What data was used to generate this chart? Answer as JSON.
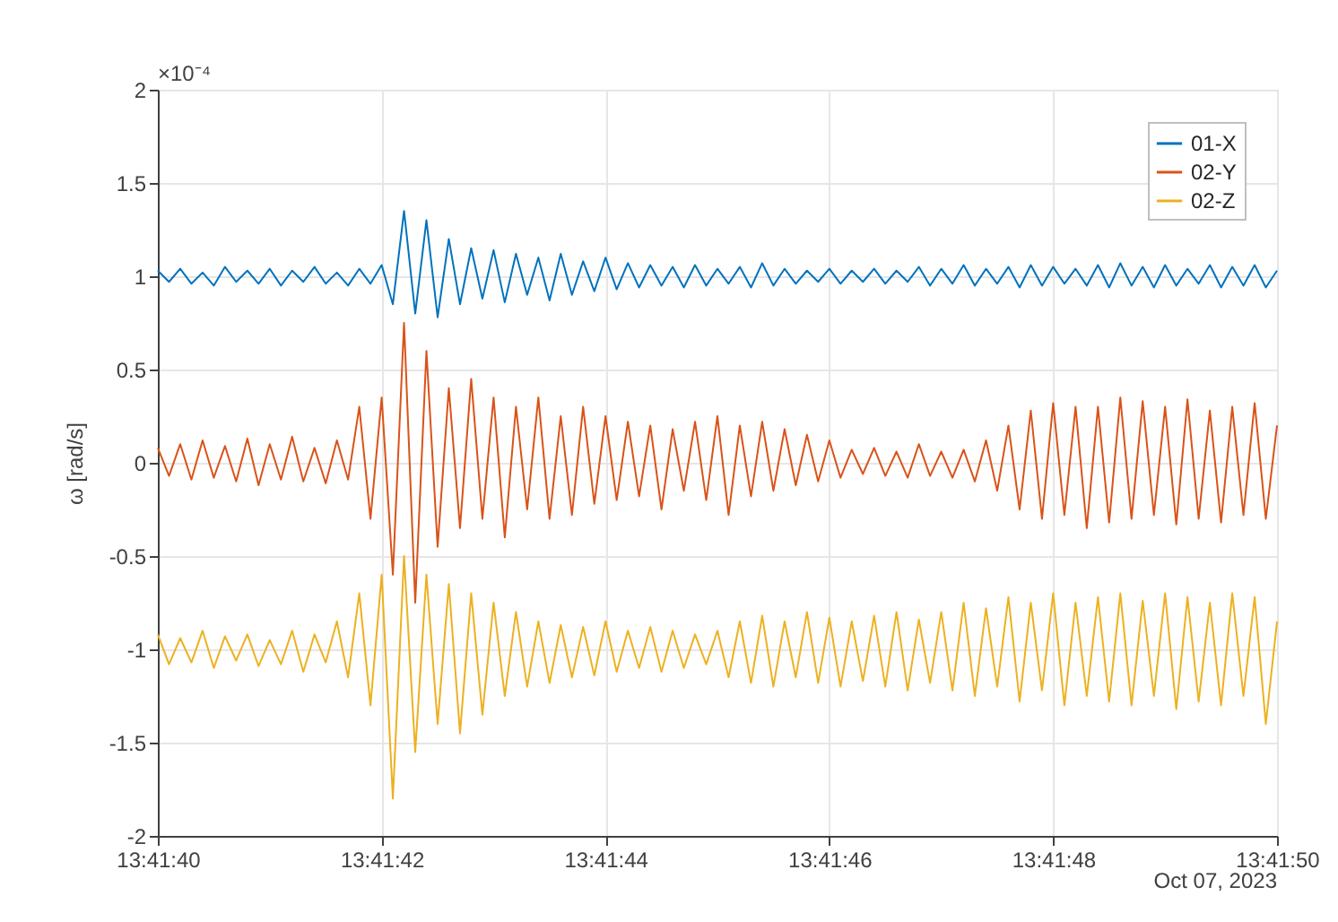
{
  "chart_data": {
    "type": "line",
    "ylabel": "ω [rad/s]",
    "annotations": [
      "×10⁻⁴",
      "Oct 07, 2023"
    ],
    "x": [
      "2023-10-07T13:41:40.0",
      "2023-10-07T13:41:40.1",
      "2023-10-07T13:41:40.2",
      "2023-10-07T13:41:40.3",
      "2023-10-07T13:41:40.4",
      "2023-10-07T13:41:40.5",
      "2023-10-07T13:41:40.6",
      "2023-10-07T13:41:40.7",
      "2023-10-07T13:41:40.8",
      "2023-10-07T13:41:40.9",
      "2023-10-07T13:41:41.0",
      "2023-10-07T13:41:41.1",
      "2023-10-07T13:41:41.2",
      "2023-10-07T13:41:41.3",
      "2023-10-07T13:41:41.4",
      "2023-10-07T13:41:41.5",
      "2023-10-07T13:41:41.6",
      "2023-10-07T13:41:41.7",
      "2023-10-07T13:41:41.8",
      "2023-10-07T13:41:41.9",
      "2023-10-07T13:41:42.0",
      "2023-10-07T13:41:42.1",
      "2023-10-07T13:41:42.2",
      "2023-10-07T13:41:42.3",
      "2023-10-07T13:41:42.4",
      "2023-10-07T13:41:42.5",
      "2023-10-07T13:41:42.6",
      "2023-10-07T13:41:42.7",
      "2023-10-07T13:41:42.8",
      "2023-10-07T13:41:42.9",
      "2023-10-07T13:41:43.0",
      "2023-10-07T13:41:43.1",
      "2023-10-07T13:41:43.2",
      "2023-10-07T13:41:43.3",
      "2023-10-07T13:41:43.4",
      "2023-10-07T13:41:43.5",
      "2023-10-07T13:41:43.6",
      "2023-10-07T13:41:43.7",
      "2023-10-07T13:41:43.8",
      "2023-10-07T13:41:43.9",
      "2023-10-07T13:41:44.0",
      "2023-10-07T13:41:44.1",
      "2023-10-07T13:41:44.2",
      "2023-10-07T13:41:44.3",
      "2023-10-07T13:41:44.4",
      "2023-10-07T13:41:44.5",
      "2023-10-07T13:41:44.6",
      "2023-10-07T13:41:44.7",
      "2023-10-07T13:41:44.8",
      "2023-10-07T13:41:44.9",
      "2023-10-07T13:41:45.0",
      "2023-10-07T13:41:45.1",
      "2023-10-07T13:41:45.2",
      "2023-10-07T13:41:45.3",
      "2023-10-07T13:41:45.4",
      "2023-10-07T13:41:45.5",
      "2023-10-07T13:41:45.6",
      "2023-10-07T13:41:45.7",
      "2023-10-07T13:41:45.8",
      "2023-10-07T13:41:45.9",
      "2023-10-07T13:41:46.0",
      "2023-10-07T13:41:46.1",
      "2023-10-07T13:41:46.2",
      "2023-10-07T13:41:46.3",
      "2023-10-07T13:41:46.4",
      "2023-10-07T13:41:46.5",
      "2023-10-07T13:41:46.6",
      "2023-10-07T13:41:46.7",
      "2023-10-07T13:41:46.8",
      "2023-10-07T13:41:46.9",
      "2023-10-07T13:41:47.0",
      "2023-10-07T13:41:47.1",
      "2023-10-07T13:41:47.2",
      "2023-10-07T13:41:47.3",
      "2023-10-07T13:41:47.4",
      "2023-10-07T13:41:47.5",
      "2023-10-07T13:41:47.6",
      "2023-10-07T13:41:47.7",
      "2023-10-07T13:41:47.8",
      "2023-10-07T13:41:47.9",
      "2023-10-07T13:41:48.0",
      "2023-10-07T13:41:48.1",
      "2023-10-07T13:41:48.2",
      "2023-10-07T13:41:48.3",
      "2023-10-07T13:41:48.4",
      "2023-10-07T13:41:48.5",
      "2023-10-07T13:41:48.6",
      "2023-10-07T13:41:48.7",
      "2023-10-07T13:41:48.8",
      "2023-10-07T13:41:48.9",
      "2023-10-07T13:41:49.0",
      "2023-10-07T13:41:49.1",
      "2023-10-07T13:41:49.2",
      "2023-10-07T13:41:49.3",
      "2023-10-07T13:41:49.4",
      "2023-10-07T13:41:49.5",
      "2023-10-07T13:41:49.6",
      "2023-10-07T13:41:49.7",
      "2023-10-07T13:41:49.8",
      "2023-10-07T13:41:49.9",
      "2023-10-07T13:41:50.0"
    ],
    "series": [
      {
        "name": "01-X",
        "color": "#0072bd",
        "values": [
          1.03,
          0.97,
          1.04,
          0.96,
          1.02,
          0.95,
          1.05,
          0.97,
          1.03,
          0.96,
          1.04,
          0.95,
          1.03,
          0.97,
          1.05,
          0.96,
          1.02,
          0.95,
          1.04,
          0.96,
          1.06,
          0.85,
          1.35,
          0.8,
          1.3,
          0.78,
          1.2,
          0.85,
          1.15,
          0.88,
          1.14,
          0.86,
          1.12,
          0.9,
          1.1,
          0.87,
          1.12,
          0.9,
          1.08,
          0.92,
          1.1,
          0.93,
          1.07,
          0.94,
          1.06,
          0.95,
          1.05,
          0.94,
          1.06,
          0.95,
          1.04,
          0.96,
          1.05,
          0.94,
          1.07,
          0.95,
          1.04,
          0.96,
          1.03,
          0.97,
          1.04,
          0.96,
          1.03,
          0.97,
          1.04,
          0.96,
          1.03,
          0.97,
          1.05,
          0.95,
          1.04,
          0.96,
          1.06,
          0.95,
          1.04,
          0.96,
          1.05,
          0.94,
          1.06,
          0.95,
          1.05,
          0.96,
          1.04,
          0.95,
          1.06,
          0.94,
          1.07,
          0.95,
          1.05,
          0.94,
          1.06,
          0.95,
          1.04,
          0.96,
          1.06,
          0.94,
          1.05,
          0.95,
          1.06,
          0.94,
          1.03
        ]
      },
      {
        "name": "02-Y",
        "color": "#d95319",
        "values": [
          0.08,
          -0.07,
          0.1,
          -0.09,
          0.12,
          -0.08,
          0.09,
          -0.1,
          0.13,
          -0.12,
          0.1,
          -0.09,
          0.14,
          -0.1,
          0.08,
          -0.11,
          0.12,
          -0.09,
          0.3,
          -0.3,
          0.35,
          -0.6,
          0.75,
          -0.75,
          0.6,
          -0.45,
          0.4,
          -0.35,
          0.45,
          -0.3,
          0.35,
          -0.4,
          0.3,
          -0.25,
          0.35,
          -0.3,
          0.25,
          -0.28,
          0.3,
          -0.22,
          0.25,
          -0.2,
          0.22,
          -0.18,
          0.2,
          -0.25,
          0.18,
          -0.15,
          0.22,
          -0.2,
          0.25,
          -0.28,
          0.2,
          -0.18,
          0.22,
          -0.15,
          0.18,
          -0.12,
          0.15,
          -0.1,
          0.12,
          -0.08,
          0.07,
          -0.06,
          0.08,
          -0.07,
          0.06,
          -0.08,
          0.1,
          -0.07,
          0.06,
          -0.08,
          0.07,
          -0.1,
          0.12,
          -0.15,
          0.2,
          -0.25,
          0.28,
          -0.3,
          0.32,
          -0.28,
          0.3,
          -0.35,
          0.3,
          -0.32,
          0.35,
          -0.3,
          0.33,
          -0.28,
          0.3,
          -0.33,
          0.34,
          -0.3,
          0.28,
          -0.32,
          0.3,
          -0.28,
          0.32,
          -0.3,
          0.2
        ]
      },
      {
        "name": "02-Z",
        "color": "#edb120",
        "values": [
          -0.92,
          -1.08,
          -0.94,
          -1.07,
          -0.9,
          -1.1,
          -0.93,
          -1.06,
          -0.92,
          -1.09,
          -0.95,
          -1.08,
          -0.9,
          -1.12,
          -0.92,
          -1.07,
          -0.85,
          -1.15,
          -0.7,
          -1.3,
          -0.6,
          -1.8,
          -0.5,
          -1.55,
          -0.6,
          -1.4,
          -0.65,
          -1.45,
          -0.7,
          -1.35,
          -0.75,
          -1.25,
          -0.8,
          -1.2,
          -0.85,
          -1.18,
          -0.87,
          -1.15,
          -0.88,
          -1.14,
          -0.85,
          -1.12,
          -0.9,
          -1.1,
          -0.88,
          -1.12,
          -0.9,
          -1.1,
          -0.92,
          -1.08,
          -0.9,
          -1.15,
          -0.85,
          -1.18,
          -0.82,
          -1.2,
          -0.85,
          -1.15,
          -0.8,
          -1.18,
          -0.83,
          -1.2,
          -0.85,
          -1.17,
          -0.82,
          -1.2,
          -0.8,
          -1.22,
          -0.84,
          -1.18,
          -0.8,
          -1.22,
          -0.75,
          -1.25,
          -0.78,
          -1.2,
          -0.72,
          -1.28,
          -0.75,
          -1.22,
          -0.7,
          -1.3,
          -0.75,
          -1.25,
          -0.72,
          -1.28,
          -0.7,
          -1.3,
          -0.74,
          -1.25,
          -0.7,
          -1.32,
          -0.72,
          -1.28,
          -0.75,
          -1.3,
          -0.7,
          -1.25,
          -0.72,
          -1.4,
          -0.85
        ]
      }
    ],
    "xlim": [
      "2023-10-07T13:41:40",
      "2023-10-07T13:41:50"
    ],
    "xticks": [
      {
        "value": "2023-10-07T13:41:40",
        "label": "13:41:40"
      },
      {
        "value": "2023-10-07T13:41:42",
        "label": "13:41:42"
      },
      {
        "value": "2023-10-07T13:41:44",
        "label": "13:41:44"
      },
      {
        "value": "2023-10-07T13:41:46",
        "label": "13:41:46"
      },
      {
        "value": "2023-10-07T13:41:48",
        "label": "13:41:48"
      },
      {
        "value": "2023-10-07T13:41:50",
        "label": "13:41:50"
      }
    ],
    "ylim": [
      -2,
      2
    ],
    "yticks": [
      -2,
      -1.5,
      -1,
      -0.5,
      0,
      0.5,
      1,
      1.5,
      2
    ],
    "grid": true,
    "legend": "top right"
  }
}
